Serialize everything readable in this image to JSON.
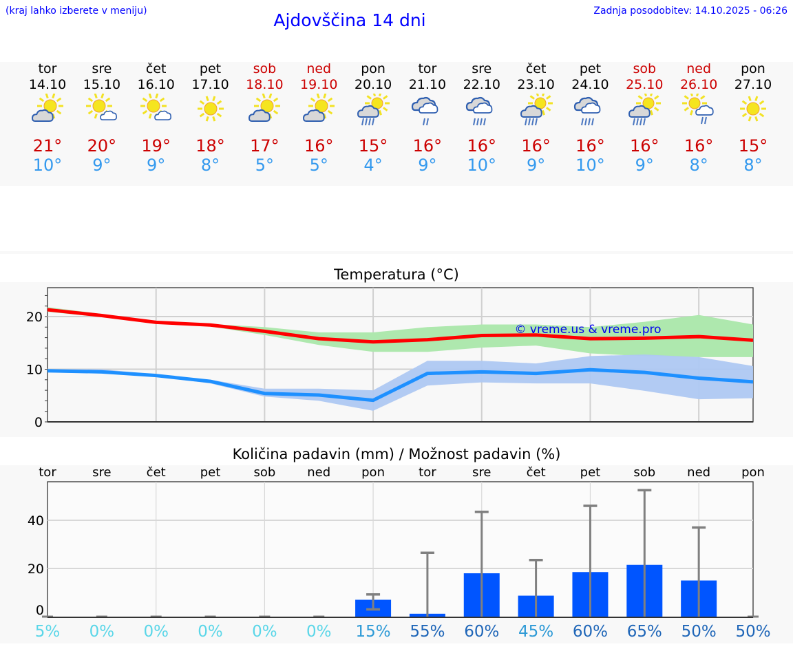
{
  "header": {
    "hint": "(kraj lahko izberete v meniju)",
    "title": "Ajdovščina 14 dni",
    "updated": "Zadnja posodobitev: 14.10.2025 - 06:26"
  },
  "days": [
    {
      "name": "tor",
      "date": "14.10",
      "weekend": false,
      "icon": "sun-cloud-gray",
      "max": "21°",
      "min": "10°"
    },
    {
      "name": "sre",
      "date": "15.10",
      "weekend": false,
      "icon": "sun-cloud-white",
      "max": "20°",
      "min": "9°"
    },
    {
      "name": "čet",
      "date": "16.10",
      "weekend": false,
      "icon": "sun-cloud-white",
      "max": "19°",
      "min": "9°"
    },
    {
      "name": "pet",
      "date": "17.10",
      "weekend": false,
      "icon": "sun",
      "max": "18°",
      "min": "8°"
    },
    {
      "name": "sob",
      "date": "18.10",
      "weekend": true,
      "icon": "sun-cloud-gray",
      "max": "17°",
      "min": "5°"
    },
    {
      "name": "ned",
      "date": "19.10",
      "weekend": true,
      "icon": "sun-cloud-gray",
      "max": "16°",
      "min": "5°"
    },
    {
      "name": "pon",
      "date": "20.10",
      "weekend": false,
      "icon": "sun-cloud-gray-rain",
      "max": "15°",
      "min": "4°"
    },
    {
      "name": "tor",
      "date": "21.10",
      "weekend": false,
      "icon": "clouds-light-rain",
      "max": "16°",
      "min": "9°"
    },
    {
      "name": "sre",
      "date": "22.10",
      "weekend": false,
      "icon": "clouds-rain",
      "max": "16°",
      "min": "10°"
    },
    {
      "name": "čet",
      "date": "23.10",
      "weekend": false,
      "icon": "sun-cloud-gray-rain",
      "max": "16°",
      "min": "9°"
    },
    {
      "name": "pet",
      "date": "24.10",
      "weekend": false,
      "icon": "clouds-rain",
      "max": "16°",
      "min": "10°"
    },
    {
      "name": "sob",
      "date": "25.10",
      "weekend": true,
      "icon": "sun-cloud-gray-rain",
      "max": "16°",
      "min": "9°"
    },
    {
      "name": "ned",
      "date": "26.10",
      "weekend": true,
      "icon": "sun-cloud-white-rain",
      "max": "16°",
      "min": "8°"
    },
    {
      "name": "pon",
      "date": "27.10",
      "weekend": false,
      "icon": "sun",
      "max": "15°",
      "min": "8°"
    }
  ],
  "colors": {
    "max": "#ff0000",
    "min": "#1e90ff",
    "maxBand": "#aee8ae",
    "minBand": "#aec8f2",
    "bar": "#0055ff",
    "err": "#808080",
    "pctLow": "#5ad6e8",
    "pctMid": "#2e9ad6",
    "pctHigh": "#1f66b8"
  },
  "chart_data": [
    {
      "type": "line",
      "title": "Temperatura (°C)",
      "watermark": "© vreme.us & vreme.pro",
      "ylim": [
        0,
        25.5
      ],
      "yticks": [
        0,
        10,
        20
      ],
      "ytick_labels": [
        "0",
        "10",
        "20"
      ],
      "series": [
        {
          "name": "max",
          "values": [
            21.3,
            20.2,
            18.9,
            18.4,
            17.2,
            15.8,
            15.2,
            15.6,
            16.4,
            16.5,
            15.8,
            15.9,
            16.2,
            15.5
          ],
          "band_upper": [
            21.8,
            20.5,
            19.0,
            18.6,
            18.0,
            17.0,
            17.0,
            18.0,
            18.5,
            18.5,
            18.0,
            19.0,
            20.3,
            18.5
          ],
          "band_lower": [
            20.9,
            19.9,
            18.7,
            18.1,
            16.5,
            14.6,
            13.3,
            13.3,
            14.1,
            14.5,
            13.0,
            12.5,
            12.3,
            12.3
          ]
        },
        {
          "name": "min",
          "values": [
            9.7,
            9.5,
            8.8,
            7.7,
            5.4,
            5.1,
            4.1,
            9.2,
            9.5,
            9.2,
            9.9,
            9.4,
            8.3,
            7.6
          ],
          "band_upper": [
            10.0,
            10.0,
            9.0,
            8.0,
            6.3,
            6.3,
            6.0,
            11.6,
            11.6,
            11.1,
            12.5,
            12.8,
            12.3,
            10.6
          ],
          "band_lower": [
            9.4,
            9.2,
            8.6,
            7.3,
            4.8,
            4.0,
            2.1,
            6.9,
            7.5,
            7.3,
            7.3,
            5.9,
            4.3,
            4.5
          ]
        }
      ]
    },
    {
      "type": "bar",
      "title": "Količina padavin (mm) / Možnost padavin (%)",
      "categories": [
        "tor",
        "sre",
        "čet",
        "pet",
        "sob",
        "ned",
        "pon",
        "tor",
        "sre",
        "čet",
        "pet",
        "sob",
        "ned",
        "pon"
      ],
      "ylim": [
        0,
        56
      ],
      "yticks": [
        0,
        20,
        40
      ],
      "ytick_labels": [
        "0",
        "20",
        "40"
      ],
      "values": [
        0,
        0,
        0,
        0,
        0,
        0,
        7.0,
        1.2,
        18.0,
        8.7,
        18.5,
        21.5,
        15.0,
        0
      ],
      "err_low": [
        0,
        0,
        0,
        0,
        0,
        0,
        3.0,
        0,
        0,
        0,
        0,
        0,
        0,
        0
      ],
      "err_high": [
        0,
        0,
        0,
        0,
        0,
        0,
        9.2,
        26.5,
        43.5,
        23.5,
        46.0,
        52.5,
        37.0,
        0
      ],
      "probability": [
        "5%",
        "0%",
        "0%",
        "0%",
        "0%",
        "0%",
        "15%",
        "55%",
        "60%",
        "45%",
        "60%",
        "65%",
        "50%",
        "50%"
      ],
      "probability_values": [
        5,
        0,
        0,
        0,
        0,
        0,
        15,
        55,
        60,
        45,
        60,
        65,
        50,
        50
      ]
    }
  ]
}
